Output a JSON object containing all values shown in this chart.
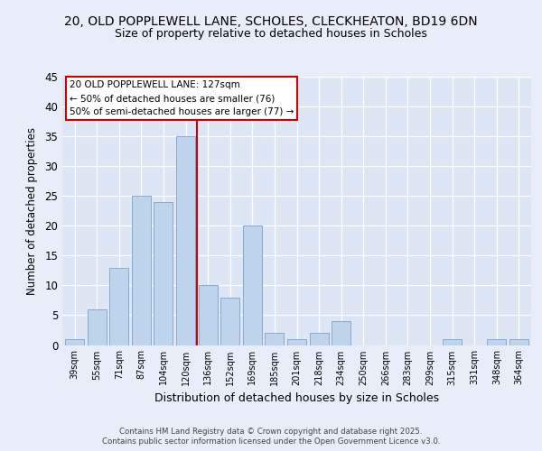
{
  "title1": "20, OLD POPPLEWELL LANE, SCHOLES, CLECKHEATON, BD19 6DN",
  "title2": "Size of property relative to detached houses in Scholes",
  "xlabel": "Distribution of detached houses by size in Scholes",
  "ylabel": "Number of detached properties",
  "categories": [
    "39sqm",
    "55sqm",
    "71sqm",
    "87sqm",
    "104sqm",
    "120sqm",
    "136sqm",
    "152sqm",
    "169sqm",
    "185sqm",
    "201sqm",
    "218sqm",
    "234sqm",
    "250sqm",
    "266sqm",
    "283sqm",
    "299sqm",
    "315sqm",
    "331sqm",
    "348sqm",
    "364sqm"
  ],
  "values": [
    1,
    6,
    13,
    25,
    24,
    35,
    10,
    8,
    20,
    2,
    1,
    2,
    4,
    0,
    0,
    0,
    0,
    1,
    0,
    1,
    1
  ],
  "bar_color": "#bed3ec",
  "bar_edge_color": "#88aacc",
  "vline_x": 5.5,
  "vline_color": "#cc0000",
  "annotation_line1": "20 OLD POPPLEWELL LANE: 127sqm",
  "annotation_line2": "← 50% of detached houses are smaller (76)",
  "annotation_line3": "50% of semi-detached houses are larger (77) →",
  "ylim": [
    0,
    45
  ],
  "yticks": [
    0,
    5,
    10,
    15,
    20,
    25,
    30,
    35,
    40,
    45
  ],
  "bg_color": "#e8edf8",
  "plot_bg_color": "#dce6f5",
  "footer1": "Contains HM Land Registry data © Crown copyright and database right 2025.",
  "footer2": "Contains public sector information licensed under the Open Government Licence v3.0."
}
